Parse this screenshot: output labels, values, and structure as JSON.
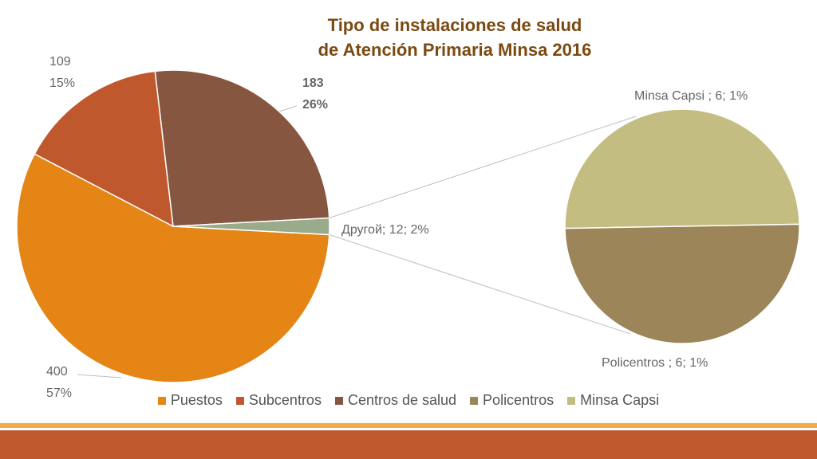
{
  "chart_data": {
    "type": "pie",
    "subtype": "pie-of-pie",
    "title_line1": "Tipo de instalaciones de salud",
    "title_line2": "de Atención Primaria  Minsa 2016",
    "main_slices": [
      {
        "name": "Puestos",
        "value": 400,
        "percent": "57%",
        "color": "#e48516"
      },
      {
        "name": "Subcentros",
        "value": 109,
        "percent": "15%",
        "color": "#bf582c"
      },
      {
        "name": "Centros de salud",
        "value": 183,
        "percent": "26%",
        "color": "#875640"
      },
      {
        "name": "Другой",
        "value": 12,
        "percent": "2%",
        "color": "#9aab8c"
      }
    ],
    "secondary_slices": [
      {
        "name": "Minsa Capsi",
        "value": 6,
        "percent": "1%",
        "color": "#c3bd81"
      },
      {
        "name": "Policentros",
        "value": 6,
        "percent": "1%",
        "color": "#9b8559"
      }
    ],
    "labels": {
      "puestos": [
        "400",
        "57%"
      ],
      "subcentros": [
        "109",
        "15%"
      ],
      "centros": [
        "183",
        "26%"
      ],
      "otro": "Другой; 12; 2%",
      "capsi": "Minsa Capsi ; 6; 1%",
      "policentros": "Policentros ; 6; 1%"
    },
    "legend": [
      {
        "name": "Puestos",
        "color": "#e48516"
      },
      {
        "name": "Subcentros",
        "color": "#bf582c"
      },
      {
        "name": "Centros de salud",
        "color": "#875640"
      },
      {
        "name": "Policentros",
        "color": "#9b8559"
      },
      {
        "name": "Minsa Capsi",
        "color": "#c3bd81"
      }
    ],
    "legend_position": "bottom"
  },
  "colors": {
    "title": "#7a4a12",
    "footer_bar": "#bf582c",
    "footer_line": "#f4a94a"
  }
}
